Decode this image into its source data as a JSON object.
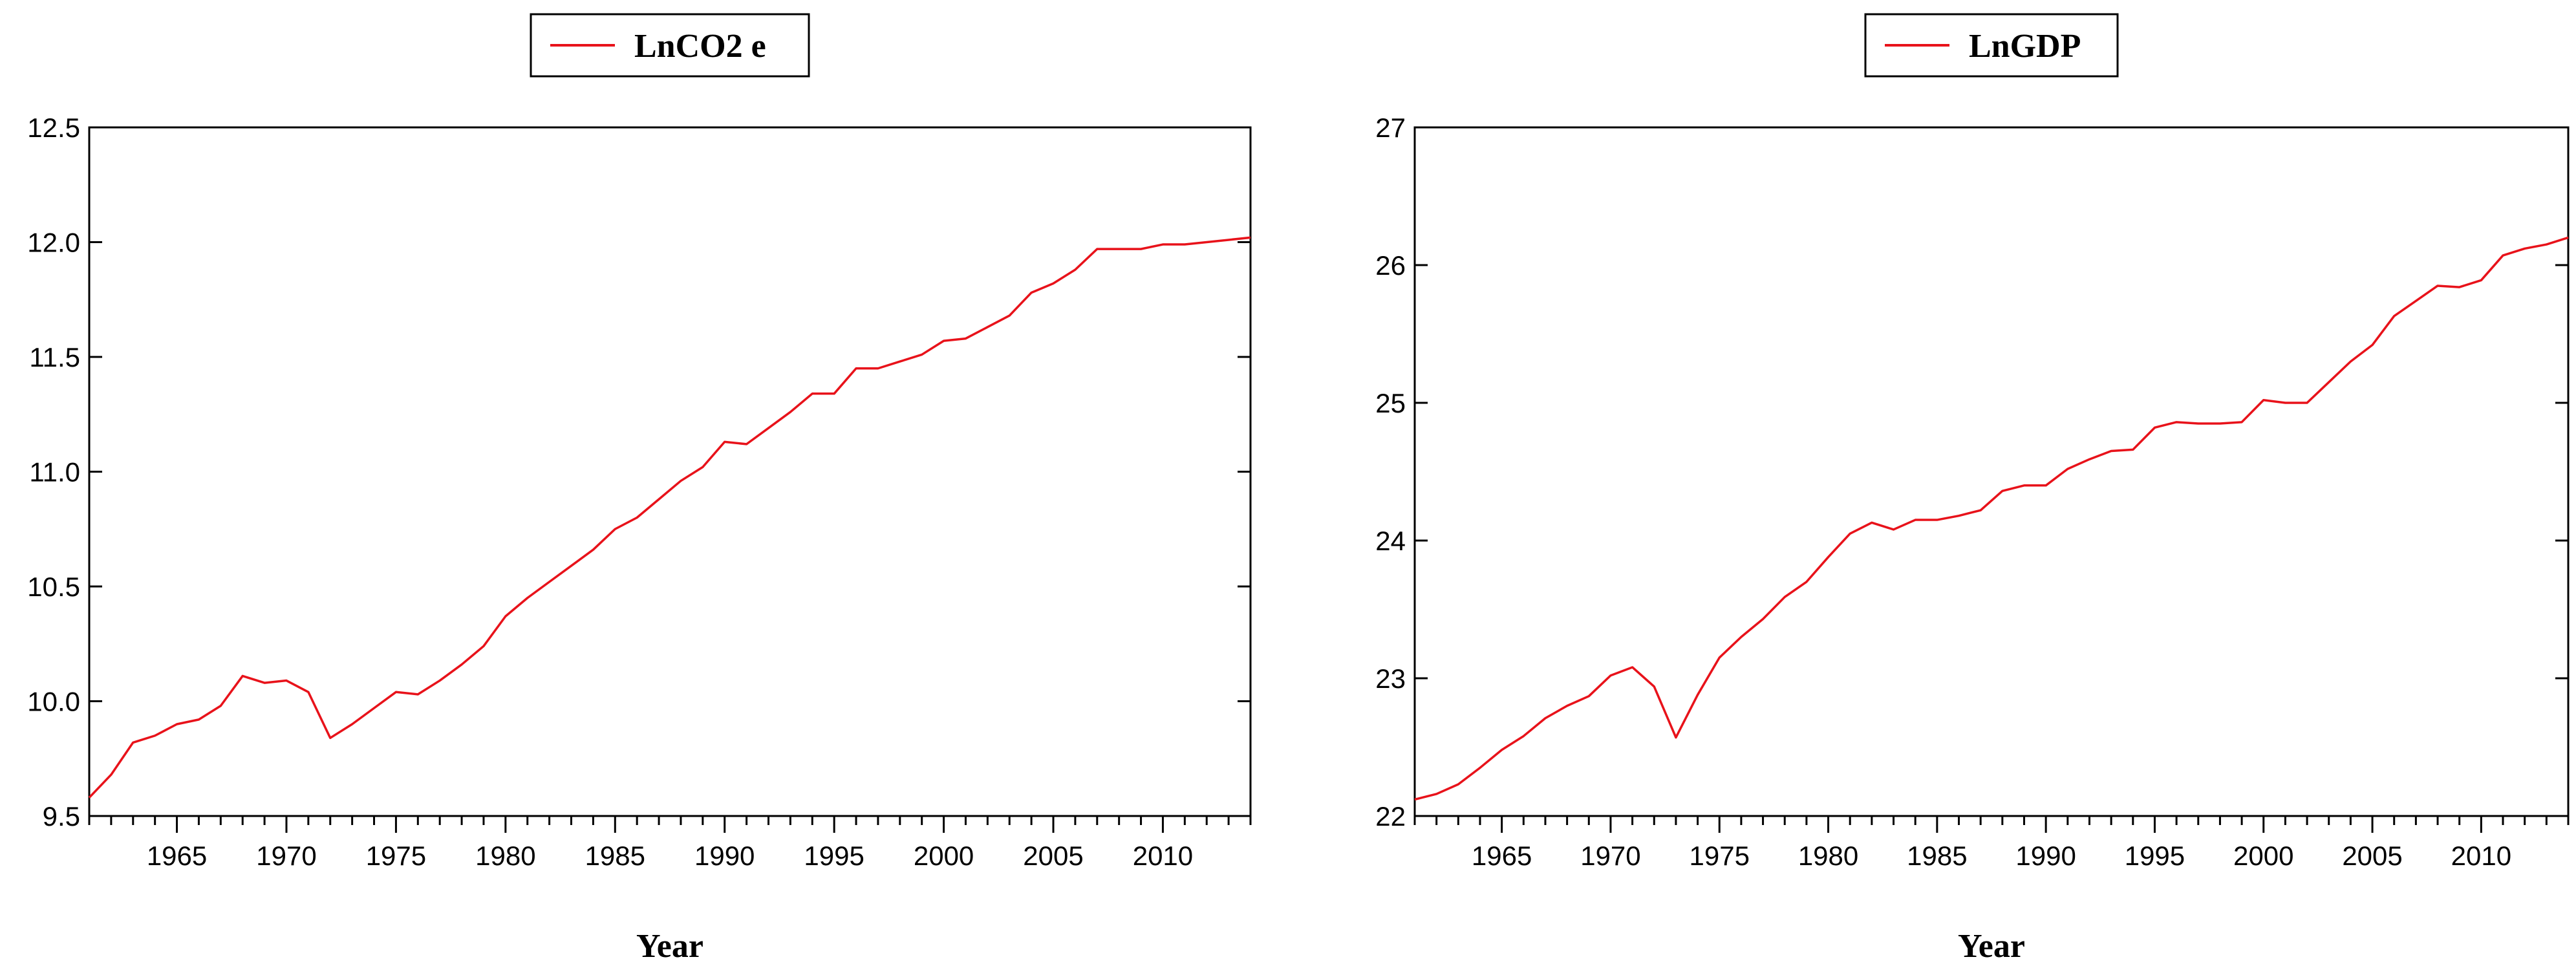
{
  "chart_data": [
    {
      "type": "line",
      "xlabel": "Year",
      "ylim": [
        9.5,
        12.5
      ],
      "xlim": [
        1961,
        2014
      ],
      "yticks": [
        9.5,
        10.0,
        10.5,
        11.0,
        11.5,
        12.0,
        12.5
      ],
      "ytick_labels": [
        "9.5",
        "10.0",
        "10.5",
        "11.0",
        "11.5",
        "12.0",
        "12.5"
      ],
      "xticks": [
        1965,
        1970,
        1975,
        1980,
        1985,
        1990,
        1995,
        2000,
        2005,
        2010
      ],
      "xtick_labels": [
        "1965",
        "1970",
        "1975",
        "1980",
        "1985",
        "1990",
        "1995",
        "2000",
        "2005",
        "2010"
      ],
      "grid": false,
      "legend_position": "top-center",
      "series": [
        {
          "name": "LnCO2 e",
          "color": "#e8121a",
          "x": [
            1961,
            1962,
            1963,
            1964,
            1965,
            1966,
            1967,
            1968,
            1969,
            1970,
            1971,
            1972,
            1973,
            1974,
            1975,
            1976,
            1977,
            1978,
            1979,
            1980,
            1981,
            1982,
            1983,
            1984,
            1985,
            1986,
            1987,
            1988,
            1989,
            1990,
            1991,
            1992,
            1993,
            1994,
            1995,
            1996,
            1997,
            1998,
            1999,
            2000,
            2001,
            2002,
            2003,
            2004,
            2005,
            2006,
            2007,
            2008,
            2009,
            2010,
            2011,
            2012,
            2013,
            2014
          ],
          "values": [
            9.58,
            9.68,
            9.82,
            9.85,
            9.9,
            9.92,
            9.98,
            10.11,
            10.08,
            10.09,
            10.04,
            9.84,
            9.9,
            9.97,
            10.04,
            10.03,
            10.09,
            10.16,
            10.24,
            10.37,
            10.45,
            10.52,
            10.59,
            10.66,
            10.75,
            10.8,
            10.88,
            10.96,
            11.02,
            11.13,
            11.12,
            11.19,
            11.26,
            11.34,
            11.34,
            11.45,
            11.45,
            11.48,
            11.51,
            11.57,
            11.58,
            11.63,
            11.68,
            11.78,
            11.82,
            11.88,
            11.97,
            11.97,
            11.97,
            11.99,
            11.99,
            12.0,
            12.01,
            12.02
          ]
        }
      ]
    },
    {
      "type": "line",
      "xlabel": "Year",
      "ylim": [
        22,
        27
      ],
      "xlim": [
        1961,
        2014
      ],
      "yticks": [
        22,
        23,
        24,
        25,
        26,
        27
      ],
      "ytick_labels": [
        "22",
        "23",
        "24",
        "25",
        "26",
        "27"
      ],
      "xticks": [
        1965,
        1970,
        1975,
        1980,
        1985,
        1990,
        1995,
        2000,
        2005,
        2010
      ],
      "xtick_labels": [
        "1965",
        "1970",
        "1975",
        "1980",
        "1985",
        "1990",
        "1995",
        "2000",
        "2005",
        "2010"
      ],
      "grid": false,
      "legend_position": "top-center",
      "series": [
        {
          "name": "LnGDP",
          "color": "#e8121a",
          "x": [
            1961,
            1962,
            1963,
            1964,
            1965,
            1966,
            1967,
            1968,
            1969,
            1970,
            1971,
            1972,
            1973,
            1974,
            1975,
            1976,
            1977,
            1978,
            1979,
            1980,
            1981,
            1982,
            1983,
            1984,
            1985,
            1986,
            1987,
            1988,
            1989,
            1990,
            1991,
            1992,
            1993,
            1994,
            1995,
            1996,
            1997,
            1998,
            1999,
            2000,
            2001,
            2002,
            2003,
            2004,
            2005,
            2006,
            2007,
            2008,
            2009,
            2010,
            2011,
            2012,
            2013,
            2014
          ],
          "values": [
            22.12,
            22.16,
            22.23,
            22.35,
            22.48,
            22.58,
            22.71,
            22.8,
            22.87,
            23.02,
            23.08,
            22.94,
            22.57,
            22.88,
            23.15,
            23.3,
            23.43,
            23.59,
            23.7,
            23.88,
            24.05,
            24.13,
            24.08,
            24.15,
            24.15,
            24.18,
            24.22,
            24.36,
            24.4,
            24.4,
            24.52,
            24.59,
            24.65,
            24.66,
            24.82,
            24.86,
            24.85,
            24.85,
            24.86,
            25.02,
            25.0,
            25.0,
            25.15,
            25.3,
            25.42,
            25.63,
            25.74,
            25.85,
            25.84,
            25.89,
            26.07,
            26.12,
            26.15,
            26.2
          ]
        }
      ]
    }
  ]
}
